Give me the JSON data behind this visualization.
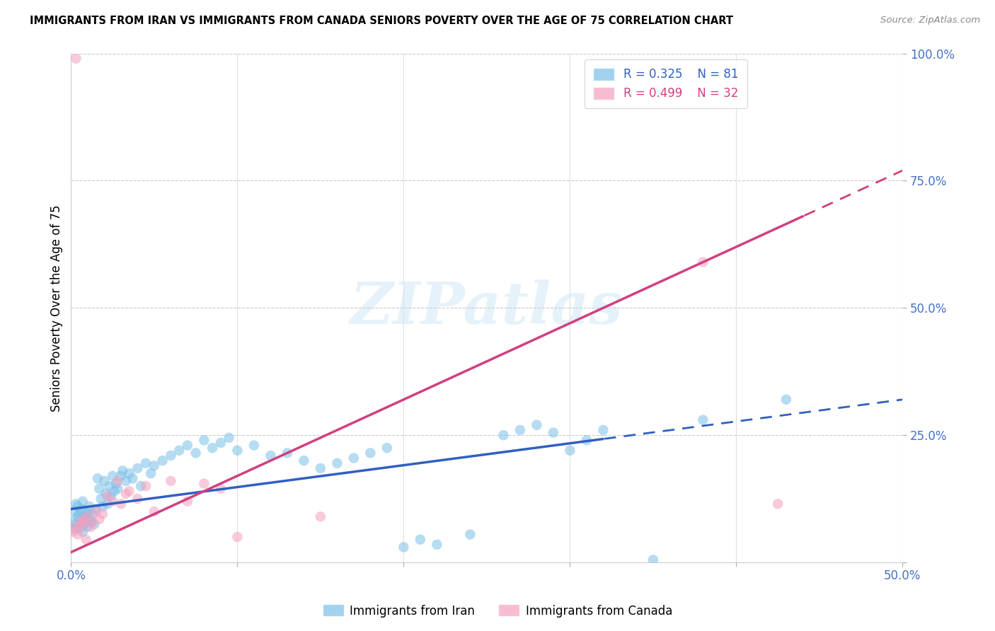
{
  "title": "IMMIGRANTS FROM IRAN VS IMMIGRANTS FROM CANADA SENIORS POVERTY OVER THE AGE OF 75 CORRELATION CHART",
  "source": "Source: ZipAtlas.com",
  "ylabel": "Seniors Poverty Over the Age of 75",
  "xlim": [
    0.0,
    0.5
  ],
  "ylim": [
    0.0,
    1.0
  ],
  "iran_R": 0.325,
  "iran_N": 81,
  "canada_R": 0.499,
  "canada_N": 32,
  "iran_color": "#7bc0e8",
  "canada_color": "#f4a0c0",
  "iran_line_color": "#3060c0",
  "canada_line_color": "#d04080",
  "iran_line_solid_end": 0.32,
  "canada_line_solid_end": 0.44,
  "iran_line_x0": 0.0,
  "iran_line_y0": 0.105,
  "iran_line_x1": 0.5,
  "iran_line_y1": 0.32,
  "canada_line_x0": 0.0,
  "canada_line_y0": 0.02,
  "canada_line_x1": 0.5,
  "canada_line_y1": 0.77,
  "iran_pts_x": [
    0.001,
    0.002,
    0.002,
    0.003,
    0.003,
    0.004,
    0.004,
    0.005,
    0.005,
    0.006,
    0.006,
    0.007,
    0.007,
    0.008,
    0.008,
    0.009,
    0.009,
    0.01,
    0.01,
    0.011,
    0.011,
    0.012,
    0.013,
    0.014,
    0.015,
    0.016,
    0.017,
    0.018,
    0.019,
    0.02,
    0.021,
    0.022,
    0.023,
    0.024,
    0.025,
    0.026,
    0.027,
    0.028,
    0.03,
    0.031,
    0.033,
    0.035,
    0.037,
    0.04,
    0.042,
    0.045,
    0.048,
    0.05,
    0.055,
    0.06,
    0.065,
    0.07,
    0.075,
    0.08,
    0.085,
    0.09,
    0.095,
    0.1,
    0.11,
    0.12,
    0.13,
    0.14,
    0.15,
    0.16,
    0.17,
    0.18,
    0.19,
    0.2,
    0.21,
    0.22,
    0.24,
    0.26,
    0.27,
    0.28,
    0.29,
    0.3,
    0.31,
    0.32,
    0.35,
    0.38,
    0.43
  ],
  "iran_pts_y": [
    0.08,
    0.065,
    0.1,
    0.075,
    0.115,
    0.09,
    0.11,
    0.07,
    0.095,
    0.085,
    0.105,
    0.06,
    0.12,
    0.075,
    0.09,
    0.08,
    0.1,
    0.07,
    0.095,
    0.085,
    0.11,
    0.08,
    0.095,
    0.075,
    0.105,
    0.165,
    0.145,
    0.125,
    0.11,
    0.16,
    0.135,
    0.115,
    0.15,
    0.13,
    0.17,
    0.14,
    0.155,
    0.145,
    0.17,
    0.18,
    0.16,
    0.175,
    0.165,
    0.185,
    0.15,
    0.195,
    0.175,
    0.19,
    0.2,
    0.21,
    0.22,
    0.23,
    0.215,
    0.24,
    0.225,
    0.235,
    0.245,
    0.22,
    0.23,
    0.21,
    0.215,
    0.2,
    0.185,
    0.195,
    0.205,
    0.215,
    0.225,
    0.03,
    0.045,
    0.035,
    0.055,
    0.25,
    0.26,
    0.27,
    0.255,
    0.22,
    0.24,
    0.26,
    0.005,
    0.28,
    0.32
  ],
  "canada_pts_x": [
    0.001,
    0.002,
    0.003,
    0.004,
    0.005,
    0.006,
    0.007,
    0.008,
    0.009,
    0.01,
    0.012,
    0.013,
    0.015,
    0.017,
    0.019,
    0.022,
    0.025,
    0.028,
    0.03,
    0.033,
    0.035,
    0.04,
    0.045,
    0.05,
    0.06,
    0.07,
    0.08,
    0.09,
    0.1,
    0.15,
    0.38,
    0.425
  ],
  "canada_pts_y": [
    0.06,
    0.07,
    0.99,
    0.055,
    0.065,
    0.08,
    0.075,
    0.085,
    0.045,
    0.09,
    0.07,
    0.08,
    0.1,
    0.085,
    0.095,
    0.13,
    0.12,
    0.16,
    0.115,
    0.135,
    0.14,
    0.125,
    0.15,
    0.1,
    0.16,
    0.12,
    0.155,
    0.145,
    0.05,
    0.09,
    0.59,
    0.115
  ]
}
